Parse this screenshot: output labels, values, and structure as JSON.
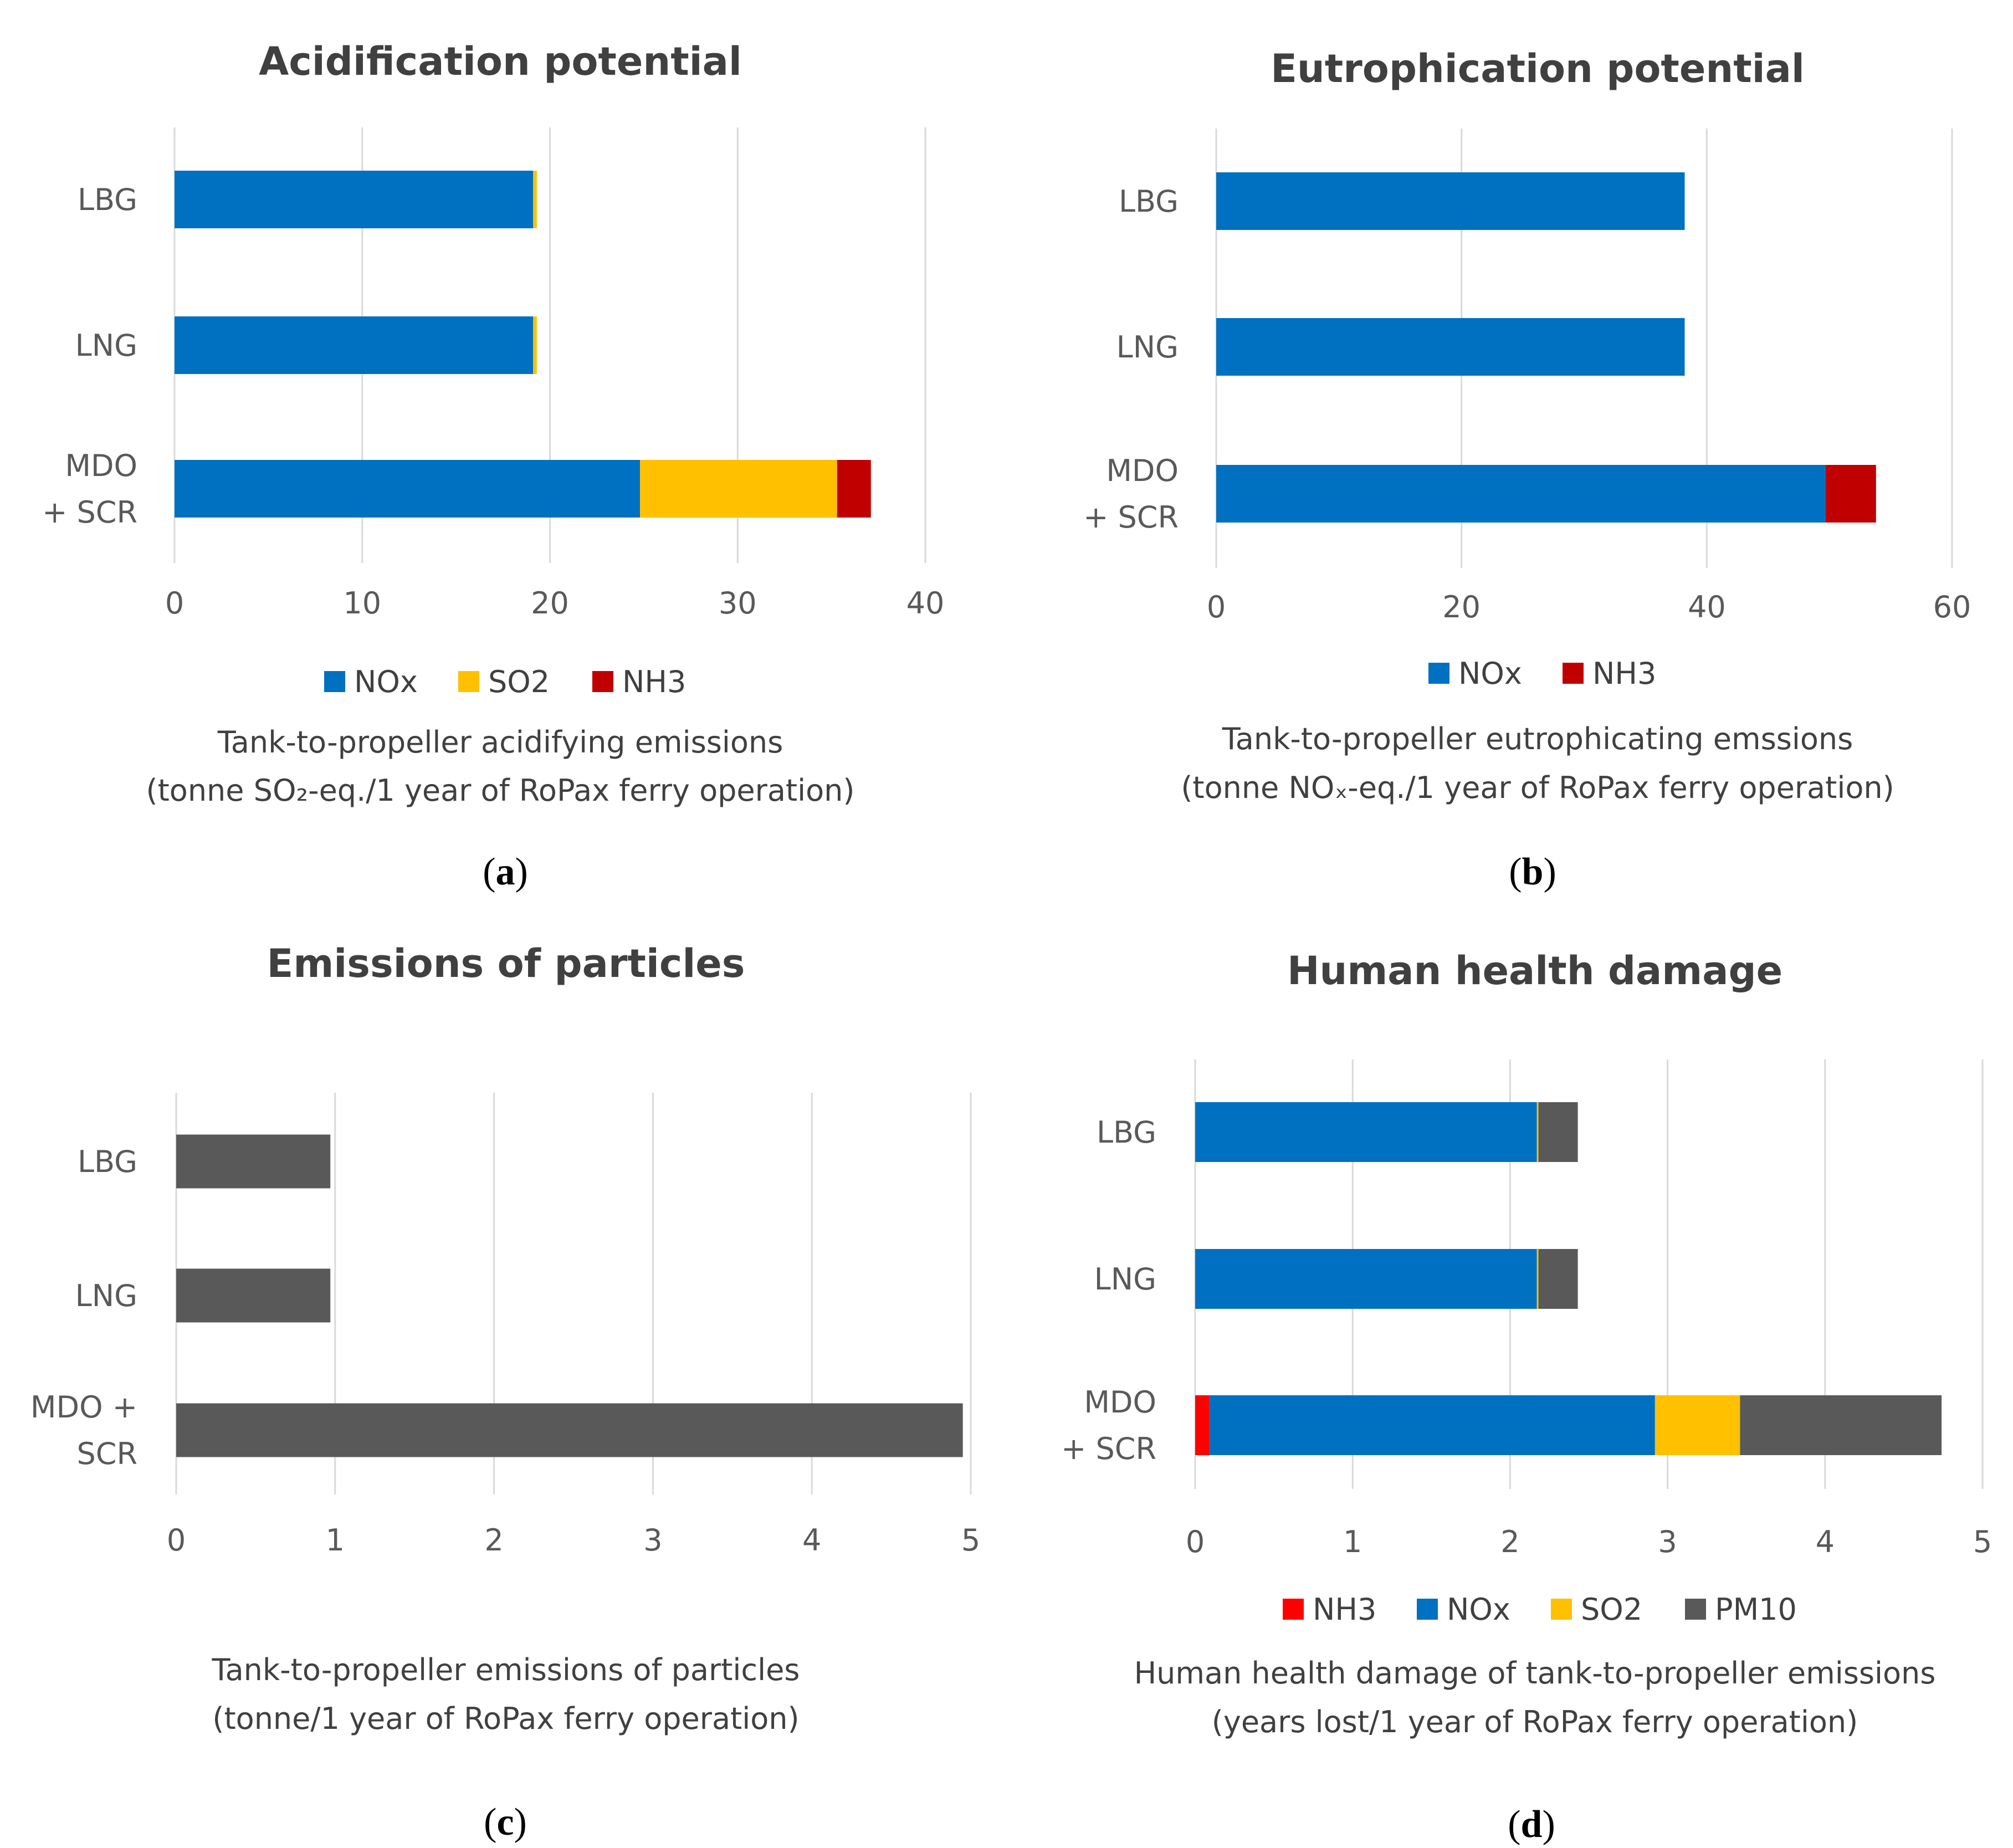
{
  "chart_data": [
    {
      "id": "a",
      "type": "bar",
      "orientation": "horizontal",
      "stacked": true,
      "title": "Acidification potential",
      "categories": [
        "LBG",
        "LNG",
        "MDO + SCR"
      ],
      "category_lines": [
        [
          "LBG"
        ],
        [
          "LNG"
        ],
        [
          "MDO",
          "+ SCR"
        ]
      ],
      "series": [
        {
          "name": "NOx",
          "color": "#0070C0",
          "values": [
            19.1,
            19.1,
            24.8
          ]
        },
        {
          "name": "SO2",
          "color": "#FFC000",
          "values": [
            0.2,
            0.2,
            10.5
          ]
        },
        {
          "name": "NH3",
          "color": "#C00000",
          "values": [
            0,
            0,
            1.8
          ]
        }
      ],
      "xlim": [
        0,
        40
      ],
      "xticks": [
        0,
        10,
        20,
        30,
        40
      ],
      "grid": true,
      "legend_position": "bottom",
      "xlabel_line1": "Tank-to-propeller acidifying emissions",
      "xlabel_line2": "(tonne SO₂-eq./1 year of RoPax ferry operation)",
      "caption_letter": "a"
    },
    {
      "id": "b",
      "type": "bar",
      "orientation": "horizontal",
      "stacked": true,
      "title": "Eutrophication potential",
      "categories": [
        "LBG",
        "LNG",
        "MDO + SCR"
      ],
      "category_lines": [
        [
          "LBG"
        ],
        [
          "LNG"
        ],
        [
          "MDO",
          "+ SCR"
        ]
      ],
      "series": [
        {
          "name": "NOx",
          "color": "#0070C0",
          "values": [
            38.2,
            38.2,
            49.7
          ]
        },
        {
          "name": "NH3",
          "color": "#C00000",
          "values": [
            0,
            0,
            4.1
          ]
        }
      ],
      "xlim": [
        0,
        60
      ],
      "xticks": [
        0,
        20,
        40,
        60
      ],
      "grid": true,
      "legend_position": "bottom",
      "xlabel_line1": "Tank-to-propeller eutrophicating emssions",
      "xlabel_line2": "(tonne NOₓ-eq./1 year of RoPax ferry operation)",
      "caption_letter": "b"
    },
    {
      "id": "c",
      "type": "bar",
      "orientation": "horizontal",
      "stacked": true,
      "title": "Emissions of particles",
      "categories": [
        "LBG",
        "LNG",
        "MDO + SCR"
      ],
      "category_lines": [
        [
          "LBG"
        ],
        [
          "LNG"
        ],
        [
          "MDO +",
          "SCR"
        ]
      ],
      "series": [
        {
          "name": "PM10",
          "color": "#595959",
          "values": [
            0.97,
            0.97,
            4.95
          ]
        }
      ],
      "xlim": [
        0,
        5
      ],
      "xticks": [
        0,
        1,
        2,
        3,
        4,
        5
      ],
      "grid": true,
      "legend_position": "none",
      "xlabel_line1": "Tank-to-propeller emissions of particles",
      "xlabel_line2": "(tonne/1 year of RoPax ferry operation)",
      "caption_letter": "c"
    },
    {
      "id": "d",
      "type": "bar",
      "orientation": "horizontal",
      "stacked": true,
      "title": "Human health damage",
      "categories": [
        "LBG",
        "LNG",
        "MDO + SCR"
      ],
      "category_lines": [
        [
          "LBG"
        ],
        [
          "LNG"
        ],
        [
          "MDO",
          "+ SCR"
        ]
      ],
      "series": [
        {
          "name": "NH3",
          "color": "#FF0000",
          "values": [
            0,
            0,
            0.09
          ]
        },
        {
          "name": "NOx",
          "color": "#0070C0",
          "values": [
            2.17,
            2.17,
            2.83
          ]
        },
        {
          "name": "SO2",
          "color": "#FFC000",
          "values": [
            0.01,
            0.01,
            0.54
          ]
        },
        {
          "name": "PM10",
          "color": "#595959",
          "values": [
            0.25,
            0.25,
            1.28
          ]
        }
      ],
      "xlim": [
        0,
        5
      ],
      "xticks": [
        0,
        1,
        2,
        3,
        4,
        5
      ],
      "grid": true,
      "legend_position": "bottom",
      "xlabel_line1": "Human health damage of tank-to-propeller emissions",
      "xlabel_line2": "(years lost/1 year of RoPax ferry operation)",
      "caption_letter": "d"
    }
  ]
}
